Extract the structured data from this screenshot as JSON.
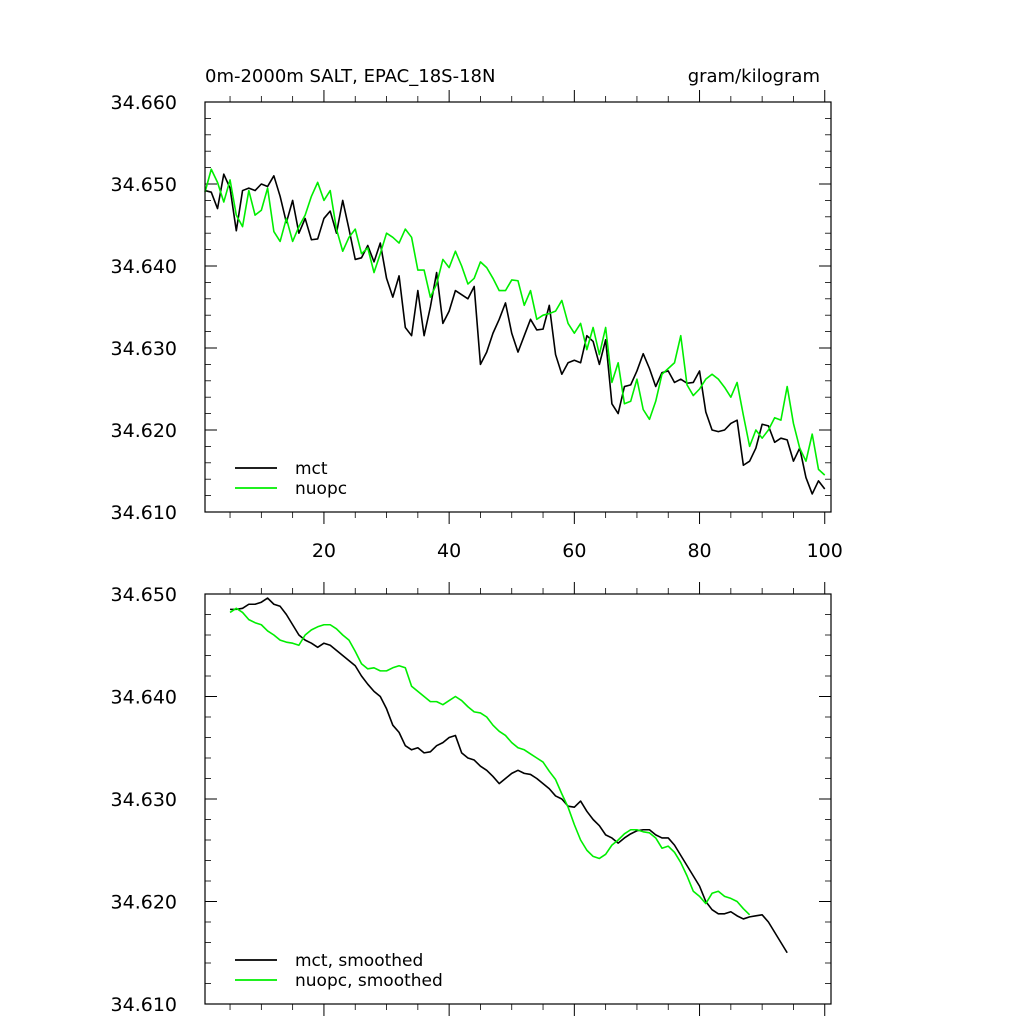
{
  "chart_data": [
    {
      "type": "line",
      "title": "0m-2000m SALT, EPAC_18S-18N",
      "units": "gram/kilogram",
      "xlim": [
        1,
        101
      ],
      "ylim": [
        34.61,
        34.66
      ],
      "xticks": [
        20,
        40,
        60,
        80,
        100
      ],
      "xtick_labels": [
        "20",
        "40",
        "60",
        "80",
        "100"
      ],
      "yticks": [
        34.61,
        34.62,
        34.63,
        34.64,
        34.65,
        34.66
      ],
      "ytick_labels": [
        "34.610",
        "34.620",
        "34.630",
        "34.640",
        "34.650",
        "34.660"
      ],
      "legend_position": "bottom-left",
      "series": [
        {
          "name": "mct",
          "color": "#000000",
          "values": [
            34.6492,
            34.649,
            34.647,
            34.6512,
            34.6495,
            34.6443,
            34.6492,
            34.6495,
            34.6492,
            34.65,
            34.6497,
            34.651,
            34.6485,
            34.6453,
            34.648,
            34.644,
            34.6458,
            34.6432,
            34.6433,
            34.6458,
            34.6467,
            34.644,
            34.648,
            34.6445,
            34.6408,
            34.641,
            34.6425,
            34.6405,
            34.6428,
            34.6385,
            34.6362,
            34.6388,
            34.6325,
            34.6315,
            34.637,
            34.6315,
            34.635,
            34.6392,
            34.633,
            34.6345,
            34.637,
            34.6365,
            34.636,
            34.6375,
            34.628,
            34.6295,
            34.6318,
            34.6335,
            34.6355,
            34.6318,
            34.6295,
            34.6315,
            34.6335,
            34.6322,
            34.6323,
            34.6352,
            34.6292,
            34.6268,
            34.6282,
            34.6285,
            34.6282,
            34.6315,
            34.6308,
            34.628,
            34.631,
            34.6232,
            34.622,
            34.6253,
            34.6255,
            34.6272,
            34.6293,
            34.6275,
            34.6253,
            34.627,
            34.6272,
            34.6258,
            34.6262,
            34.6257,
            34.6258,
            34.6272,
            34.6222,
            34.62,
            34.6198,
            34.62,
            34.6208,
            34.6212,
            34.6157,
            34.6162,
            34.6178,
            34.6207,
            34.6205,
            34.6185,
            34.619,
            34.6188,
            34.6162,
            34.6178,
            34.6142,
            34.6122,
            34.6138,
            34.6128
          ]
        },
        {
          "name": "nuopc",
          "color": "#00ee00",
          "values": [
            34.649,
            34.6518,
            34.6502,
            34.6478,
            34.6505,
            34.6462,
            34.6448,
            34.6492,
            34.6462,
            34.6468,
            34.6495,
            34.6442,
            34.643,
            34.6458,
            34.643,
            34.6448,
            34.6462,
            34.6485,
            34.6502,
            34.648,
            34.6492,
            34.6445,
            34.6418,
            34.6435,
            34.6445,
            34.6415,
            34.6422,
            34.6392,
            34.6415,
            34.644,
            34.6435,
            34.6428,
            34.6445,
            34.6435,
            34.6395,
            34.6395,
            34.6362,
            34.6378,
            34.6408,
            34.6398,
            34.6418,
            34.64,
            34.6378,
            34.6385,
            34.6405,
            34.6398,
            34.6385,
            34.637,
            34.637,
            34.6383,
            34.6382,
            34.6352,
            34.637,
            34.6335,
            34.634,
            34.6342,
            34.6345,
            34.6358,
            34.633,
            34.6318,
            34.633,
            34.6298,
            34.6325,
            34.6292,
            34.6325,
            34.6258,
            34.6282,
            34.6232,
            34.6235,
            34.6262,
            34.6225,
            34.6213,
            34.6235,
            34.6268,
            34.6275,
            34.6282,
            34.6315,
            34.6255,
            34.6242,
            34.625,
            34.6262,
            34.6268,
            34.6262,
            34.6252,
            34.624,
            34.6258,
            34.6218,
            34.618,
            34.62,
            34.619,
            34.62,
            34.6215,
            34.6212,
            34.6253,
            34.6208,
            34.6178,
            34.6162,
            34.6195,
            34.6152,
            34.6145
          ]
        }
      ]
    },
    {
      "type": "line",
      "title": "",
      "xlim": [
        1,
        101
      ],
      "ylim": [
        34.61,
        34.65
      ],
      "xticks": [
        20,
        40,
        60,
        80,
        100
      ],
      "yticks": [
        34.61,
        34.62,
        34.63,
        34.64,
        34.65
      ],
      "ytick_labels": [
        "34.610",
        "34.620",
        "34.630",
        "34.640",
        "34.650"
      ],
      "legend_position": "bottom-left",
      "series": [
        {
          "name": "mct, smoothed",
          "color": "#000000",
          "x_start": 5,
          "values": [
            34.6485,
            34.6485,
            34.6486,
            34.649,
            34.649,
            34.6492,
            34.6496,
            34.649,
            34.6488,
            34.648,
            34.647,
            34.646,
            34.6455,
            34.6452,
            34.6448,
            34.6452,
            34.645,
            34.6445,
            34.644,
            34.6435,
            34.643,
            34.642,
            34.6412,
            34.6405,
            34.64,
            34.6388,
            34.6372,
            34.6365,
            34.6352,
            34.6348,
            34.635,
            34.6345,
            34.6346,
            34.6352,
            34.6355,
            34.636,
            34.6362,
            34.6345,
            34.634,
            34.6338,
            34.6332,
            34.6328,
            34.6322,
            34.6315,
            34.632,
            34.6325,
            34.6328,
            34.6325,
            34.6324,
            34.632,
            34.6315,
            34.631,
            34.6303,
            34.63,
            34.6293,
            34.6292,
            34.6298,
            34.6288,
            34.628,
            34.6274,
            34.6265,
            34.6262,
            34.6257,
            34.6262,
            34.6266,
            34.6269,
            34.627,
            34.627,
            34.6265,
            34.6262,
            34.6262,
            34.6255,
            34.6245,
            34.6235,
            34.6225,
            34.6215,
            34.62,
            34.6192,
            34.6188,
            34.6188,
            34.619,
            34.6186,
            34.6183,
            34.6185,
            34.6186,
            34.6187,
            34.618,
            34.617,
            34.616,
            34.615
          ]
        },
        {
          "name": "nuopc, smoothed",
          "color": "#00ee00",
          "x_start": 5,
          "values": [
            34.6482,
            34.6486,
            34.6482,
            34.6475,
            34.6472,
            34.647,
            34.6464,
            34.646,
            34.6455,
            34.6453,
            34.6452,
            34.645,
            34.646,
            34.6465,
            34.6468,
            34.647,
            34.647,
            34.6466,
            34.646,
            34.6455,
            34.6444,
            34.6432,
            34.6427,
            34.6428,
            34.6425,
            34.6425,
            34.6428,
            34.643,
            34.6428,
            34.641,
            34.6405,
            34.64,
            34.6395,
            34.6395,
            34.6392,
            34.6396,
            34.64,
            34.6396,
            34.639,
            34.6385,
            34.6384,
            34.638,
            34.6372,
            34.6366,
            34.6362,
            34.6355,
            34.635,
            34.6348,
            34.6344,
            34.634,
            34.6336,
            34.6327,
            34.6319,
            34.6305,
            34.6292,
            34.6275,
            34.626,
            34.625,
            34.6244,
            34.6242,
            34.6246,
            34.6255,
            34.626,
            34.6266,
            34.627,
            34.627,
            34.6268,
            34.6267,
            34.6262,
            34.6252,
            34.6254,
            34.6248,
            34.6238,
            34.6225,
            34.621,
            34.6205,
            34.6198,
            34.6208,
            34.621,
            34.6205,
            34.6203,
            34.62,
            34.6193,
            34.6187
          ]
        }
      ]
    }
  ]
}
